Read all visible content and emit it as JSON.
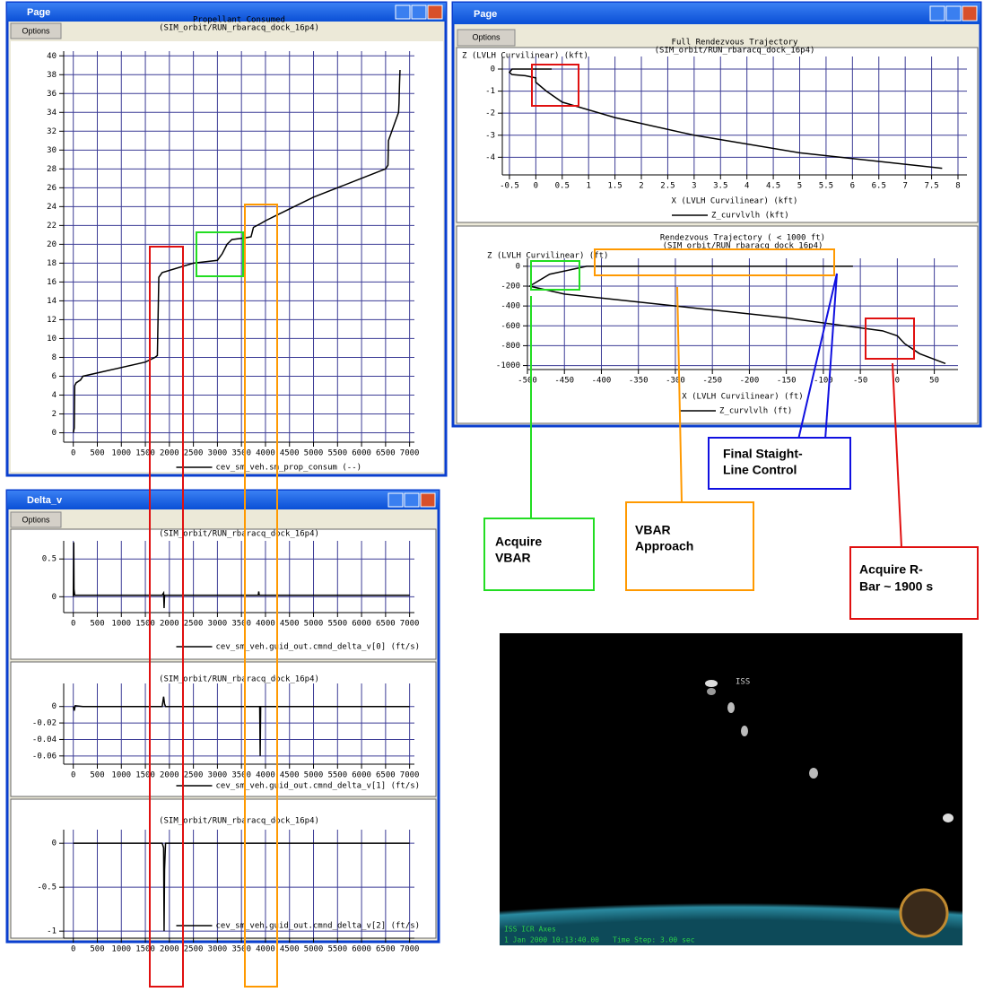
{
  "windows": [
    {
      "title": "Page",
      "button": "Options"
    },
    {
      "title": "Page",
      "button": "Options"
    },
    {
      "title": "Delta_v",
      "button": "Options"
    }
  ],
  "chart_data": [
    {
      "type": "line",
      "title": "Propellant Consumed",
      "subtitle": "(SIM_orbit/RUN_rbaracq_dock_16p4)",
      "x": [
        0,
        20,
        30,
        60,
        150,
        200,
        1500,
        1700,
        1750,
        1780,
        1850,
        2500,
        3000,
        3100,
        3200,
        3300,
        3600,
        3700,
        3750,
        3900,
        4000,
        4200,
        5000,
        6000,
        6500,
        6550,
        6560,
        6700,
        6770,
        6780,
        6790,
        6800
      ],
      "series": [
        {
          "name": "cev_sm_veh.sm_prop_consum (--)",
          "color": "#000000",
          "values": [
            0,
            0.5,
            5,
            5.3,
            5.6,
            6,
            7.5,
            8,
            8.2,
            16.5,
            17,
            18,
            18.3,
            19,
            20,
            20.5,
            20.7,
            20.8,
            21.8,
            22.2,
            22.5,
            23,
            25,
            27,
            28,
            28.4,
            31,
            33,
            34,
            35,
            37,
            38.5
          ]
        }
      ],
      "xlim": [
        -200,
        7100
      ],
      "ylim": [
        -1,
        40.5
      ],
      "xticks": [
        0,
        500,
        1000,
        1500,
        2000,
        2500,
        3000,
        3500,
        4000,
        4500,
        5000,
        5500,
        6000,
        6500,
        7000
      ],
      "yticks": [
        0,
        2,
        4,
        6,
        8,
        10,
        12,
        14,
        16,
        18,
        20,
        22,
        24,
        26,
        28,
        30,
        32,
        34,
        36,
        38,
        40
      ],
      "grid": true
    },
    {
      "type": "line",
      "title": "Full Rendezvous Trajectory",
      "subtitle": "(SIM_orbit/RUN_rbaracq_dock_16p4)",
      "ylabel": "Z (LVLH Curvilinear) (kft)",
      "xlabel": "X (LVLH Curvilinear) (kft)",
      "x": [
        0.3,
        -0.45,
        -0.5,
        -0.45,
        -0.2,
        0,
        0,
        0.2,
        0.5,
        1.5,
        3,
        5,
        7.7
      ],
      "series": [
        {
          "name": "Z_curvlvlh (kft)",
          "color": "#000000",
          "values": [
            0,
            0,
            -0.15,
            -0.25,
            -0.3,
            -0.4,
            -0.6,
            -1,
            -1.5,
            -2.2,
            -3,
            -3.8,
            -4.5
          ]
        }
      ],
      "xlim": [
        -0.635,
        8.17
      ],
      "ylim": [
        -4.8,
        0.57
      ],
      "xticks": [
        -0.5,
        0,
        0.5,
        1,
        1.5,
        2,
        2.5,
        3,
        3.5,
        4,
        4.5,
        5,
        5.5,
        6,
        6.5,
        7,
        7.5,
        8
      ],
      "yticks": [
        0,
        -1,
        -2,
        -3,
        -4
      ],
      "grid": true
    },
    {
      "type": "line",
      "title": "Rendezvous Trajectory ( < 1000 ft)",
      "subtitle": "(SIM_orbit/RUN_rbaracq_dock_16p4)",
      "ylabel": "Z (LVLH Curvilinear) (ft)",
      "xlabel": "X (LVLH Curvilinear) (ft)",
      "x": [
        -60,
        -420,
        -470,
        -497,
        -450,
        -300,
        -150,
        -20,
        0,
        10,
        30,
        65
      ],
      "series": [
        {
          "name": "Z_curvlvlh (ft)",
          "color": "#000000",
          "values": [
            0,
            0,
            -80,
            -200,
            -280,
            -400,
            -520,
            -650,
            -700,
            -780,
            -880,
            -980
          ]
        }
      ],
      "xlim": [
        -500,
        82
      ],
      "ylim": [
        -1040,
        80
      ],
      "xticks": [
        -500,
        -450,
        -400,
        -350,
        -300,
        -250,
        -200,
        -150,
        -100,
        -50,
        0,
        50
      ],
      "yticks": [
        0,
        -200,
        -400,
        -600,
        -800,
        -1000
      ],
      "grid": true
    },
    {
      "type": "line",
      "subtitle": "(SIM_orbit/RUN_rbaracq_dock_16p4)",
      "x": [
        0,
        10,
        15,
        30,
        100,
        1850,
        1880,
        1890,
        1900,
        1910,
        1950,
        3800,
        3850,
        3860,
        3870,
        3900,
        7000
      ],
      "series": [
        {
          "name": "cev_sm_veh.guid_out.cmnd_delta_v[0] (ft/s)",
          "color": "#000000",
          "values": [
            0,
            0.72,
            0.1,
            0.02,
            0.02,
            0.02,
            0.05,
            -0.15,
            0.02,
            0.02,
            0.02,
            0.02,
            0.02,
            0.07,
            0.02,
            0.02,
            0.02
          ]
        }
      ],
      "xlim": [
        -200,
        7100
      ],
      "ylim": [
        -0.21,
        0.74
      ],
      "xticks": [
        0,
        500,
        1000,
        1500,
        2000,
        2500,
        3000,
        3500,
        4000,
        4500,
        5000,
        5500,
        6000,
        6500,
        7000
      ],
      "yticks": [
        0.5,
        0
      ],
      "grid": true
    },
    {
      "type": "line",
      "subtitle": "(SIM_orbit/RUN_rbaracq_dock_16p4)",
      "x": [
        0,
        20,
        40,
        200,
        1850,
        1880,
        1900,
        1920,
        3800,
        3880,
        3890,
        3900,
        3920,
        7000
      ],
      "series": [
        {
          "name": "cev_sm_veh.guid_out.cmnd_delta_v[1] (ft/s)",
          "color": "#000000",
          "values": [
            0,
            -0.005,
            0.001,
            0,
            0,
            0.012,
            0.003,
            0,
            0,
            0,
            -0.06,
            0,
            0,
            0
          ]
        }
      ],
      "xlim": [
        -200,
        7100
      ],
      "ylim": [
        -0.07,
        0.028
      ],
      "xticks": [
        0,
        500,
        1000,
        1500,
        2000,
        2500,
        3000,
        3500,
        4000,
        4500,
        5000,
        5500,
        6000,
        6500,
        7000
      ],
      "yticks": [
        0,
        -0.02,
        -0.04,
        -0.06
      ],
      "grid": true
    },
    {
      "type": "line",
      "subtitle": "(SIM_orbit/RUN_rbaracq_dock_16p4)",
      "x": [
        0,
        1850,
        1880,
        1890,
        1900,
        1920,
        7000
      ],
      "series": [
        {
          "name": "cev_sm_veh.guid_out.cmnd_delta_v[2] (ft/s)",
          "color": "#000000",
          "values": [
            0,
            0,
            -0.05,
            -1,
            -0.3,
            0,
            0
          ]
        }
      ],
      "xlim": [
        -200,
        7100
      ],
      "ylim": [
        -1.08,
        0.155
      ],
      "xticks": [
        0,
        500,
        1000,
        1500,
        2000,
        2500,
        3000,
        3500,
        4000,
        4500,
        5000,
        5500,
        6000,
        6500,
        7000
      ],
      "yticks": [
        0,
        -0.5,
        -1
      ],
      "grid": true
    }
  ],
  "annotations": [
    {
      "lines": [
        "Final Staight-",
        "Line Control"
      ]
    },
    {
      "lines": [
        "Acquire",
        "VBAR"
      ]
    },
    {
      "lines": [
        "VBAR",
        "Approach"
      ]
    },
    {
      "lines": [
        "Acquire R-",
        "Bar ~ 1900 s"
      ]
    }
  ],
  "viewer": {
    "target": "ISS",
    "frame": "ISS ICR Axes",
    "time": "1 Jan 2000 10:13:40.00",
    "step": "Time Step: 3.00 sec"
  }
}
